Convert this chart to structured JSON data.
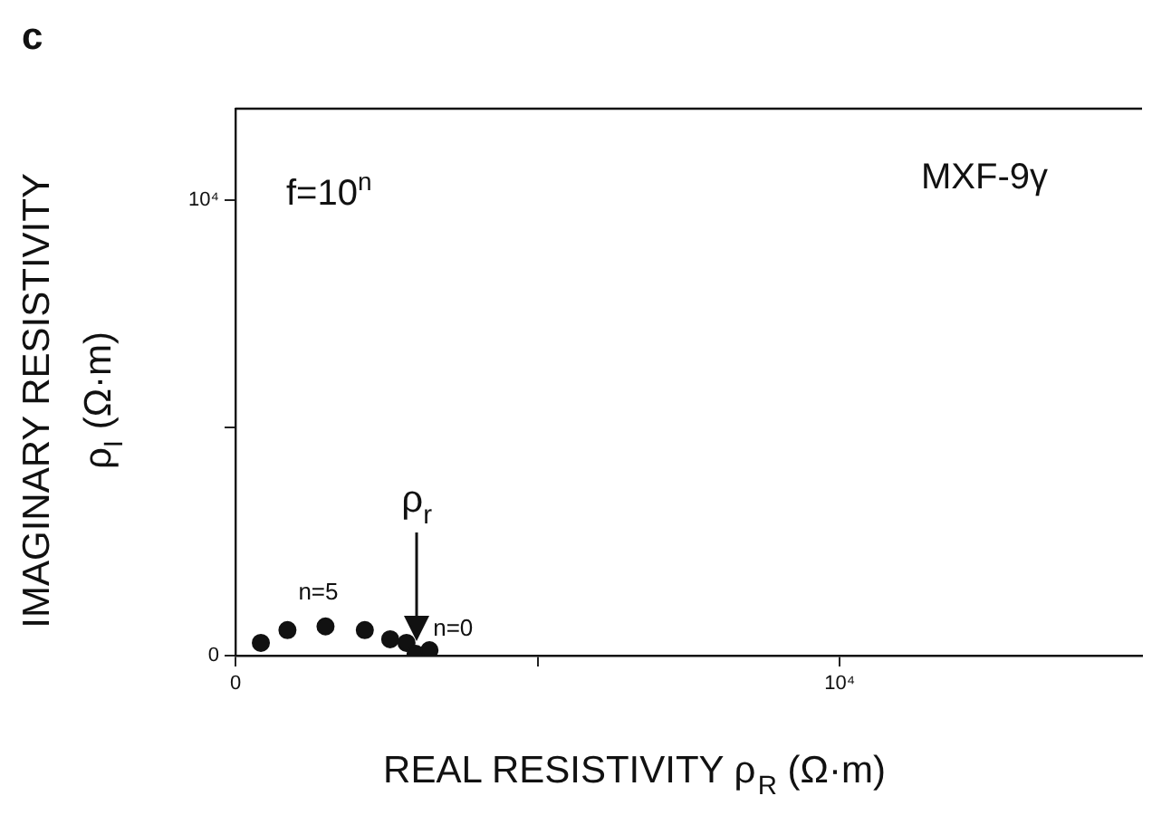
{
  "chart_data": {
    "type": "scatter",
    "xlabel": "REAL RESISTIVITY ρ$_{R}$ (Ω·m)",
    "ylabel": "IMAGINARY RESISTIVITY\nρ$_{I}$ (Ω·m)",
    "x": [
      420,
      860,
      1490,
      2140,
      2560,
      2830,
      2980,
      3210
    ],
    "series": [
      {
        "color": "#111111",
        "values": [
          280,
          560,
          640,
          560,
          360,
          280,
          40,
          120
        ]
      }
    ],
    "marker": "circle",
    "xlim": [
      0,
      15000
    ],
    "ylim": [
      0,
      12000
    ],
    "xticks": [
      0,
      {
        "value": 5000,
        "label": null
      },
      {
        "value": 10000,
        "label": "10⁴"
      }
    ],
    "yticks": [
      0,
      {
        "value": 5000,
        "label": null
      },
      {
        "value": 10000,
        "label": "10⁴"
      }
    ],
    "grid": false,
    "legend": false,
    "annotations": [
      "c",
      "f=10$^{n}$",
      "MXF-9γ",
      {
        "text": "n=5",
        "x": 1490,
        "y": 640
      },
      {
        "text": "n=0",
        "x": 3210,
        "y": 120
      },
      {
        "text": "ρ$_{r}$",
        "x": 3000,
        "y": 300
      }
    ]
  }
}
